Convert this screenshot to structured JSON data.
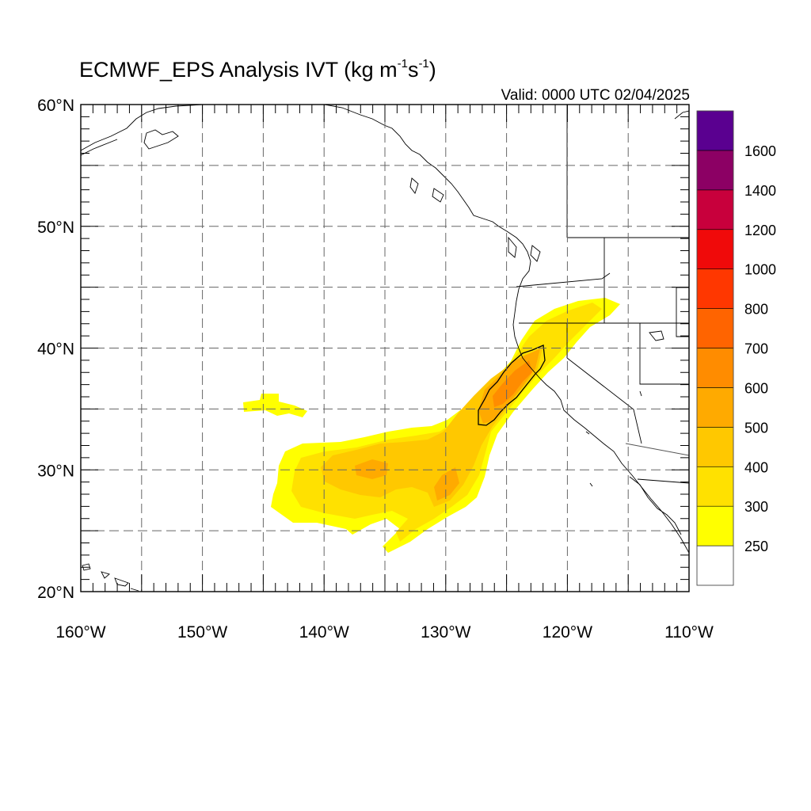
{
  "title": {
    "main": "ECMWF_EPS Analysis IVT (kg m",
    "exp1": "-1",
    "mid": "s",
    "exp2": "-1",
    "end": ")"
  },
  "valid": "Valid: 0000 UTC 02/04/2025",
  "map_extent": {
    "lon": [
      -160,
      -110
    ],
    "lat": [
      20,
      60
    ]
  },
  "lat_ticks": [
    {
      "value": 60,
      "label": "60°N"
    },
    {
      "value": 50,
      "label": "50°N"
    },
    {
      "value": 40,
      "label": "40°N"
    },
    {
      "value": 30,
      "label": "30°N"
    },
    {
      "value": 20,
      "label": "20°N"
    }
  ],
  "lon_ticks": [
    {
      "value": -160,
      "label": "160°W"
    },
    {
      "value": -150,
      "label": "150°W"
    },
    {
      "value": -140,
      "label": "140°W"
    },
    {
      "value": -130,
      "label": "130°W"
    },
    {
      "value": -120,
      "label": "120°W"
    },
    {
      "value": -110,
      "label": "110°W"
    }
  ],
  "colorbar": {
    "levels": [
      250,
      300,
      400,
      500,
      600,
      700,
      800,
      1000,
      1200,
      1400,
      1600
    ],
    "labels": [
      "250",
      "300",
      "400",
      "500",
      "600",
      "700",
      "800",
      "1000",
      "1200",
      "1400",
      "1600"
    ],
    "colors": [
      "#ffffff",
      "#ffff00",
      "#ffe100",
      "#ffc800",
      "#ffaa00",
      "#ff8c00",
      "#ff6400",
      "#ff3700",
      "#f00a0a",
      "#c8003c",
      "#8c0064",
      "#5a0090"
    ]
  },
  "ivt_field": [
    {
      "lon": -125.5,
      "lat": 37.0,
      "value": 650
    },
    {
      "lon": -123.5,
      "lat": 39.0,
      "value": 610
    },
    {
      "lon": -126.5,
      "lat": 35.5,
      "value": 620
    },
    {
      "lon": -122.5,
      "lat": 42.0,
      "value": 420
    },
    {
      "lon": -129.5,
      "lat": 29.0,
      "value": 520
    },
    {
      "lon": -137.0,
      "lat": 29.5,
      "value": 470
    },
    {
      "lon": -141.0,
      "lat": 29.0,
      "value": 320
    },
    {
      "lon": -145.5,
      "lat": 35.2,
      "value": 270
    },
    {
      "lon": -132.5,
      "lat": 24.5,
      "value": 280
    },
    {
      "lon": -118.0,
      "lat": 43.0,
      "value": 300
    }
  ]
}
